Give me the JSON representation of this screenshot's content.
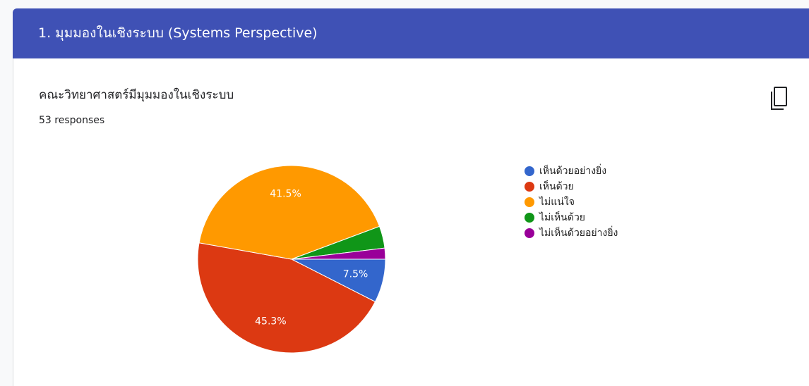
{
  "header": {
    "title": "1. มุมมองในเชิงระบบ (Systems Perspective)"
  },
  "card": {
    "question": "คณะวิทยาศาสตร์มีมุมมองในเชิงระบบ",
    "responses": "53 responses"
  },
  "chart_data": {
    "type": "pie",
    "categories": [
      "เห็นด้วยอย่างยิ่ง",
      "เห็นด้วย",
      "ไม่แน่ใจ",
      "ไม่เห็นด้วย",
      "ไม่เห็นด้วยอย่างยิ่ง"
    ],
    "values": [
      7.5,
      45.3,
      41.5,
      3.8,
      1.9
    ],
    "value_labels": [
      "7.5%",
      "45.3%",
      "41.5%",
      null,
      null
    ],
    "colors": [
      "#3366cc",
      "#dc3912",
      "#ff9900",
      "#109618",
      "#990099"
    ],
    "legend": "right"
  }
}
